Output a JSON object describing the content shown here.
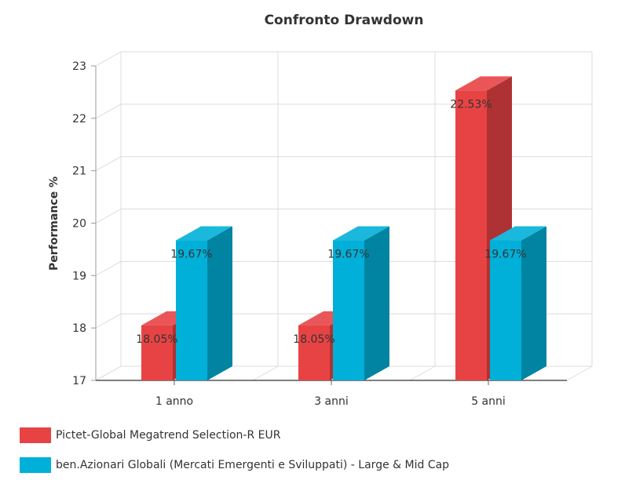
{
  "chart_data": {
    "type": "bar",
    "title": "Confronto Drawdown",
    "xlabel": "",
    "ylabel": "Performance %",
    "categories": [
      "1 anno",
      "3 anni",
      "5 anni"
    ],
    "ylim": [
      17,
      23
    ],
    "yticks": [
      "17",
      "18",
      "19",
      "20",
      "21",
      "22",
      "23"
    ],
    "grid": true,
    "legend_position": "bottom-left",
    "series": [
      {
        "name": "Pictet-Global Megatrend Selection-R EUR",
        "color": "#e84344",
        "values": [
          18.05,
          18.05,
          22.53
        ],
        "labels": [
          "18.05%",
          "18.05%",
          "22.53%"
        ]
      },
      {
        "name": "ben.Azionari Globali (Mercati Emergenti e Sviluppati) - Large & Mid Cap",
        "color": "#00b0d8",
        "values": [
          19.67,
          19.67,
          19.67
        ],
        "labels": [
          "19.67%",
          "19.67%",
          "19.67%"
        ]
      }
    ]
  }
}
